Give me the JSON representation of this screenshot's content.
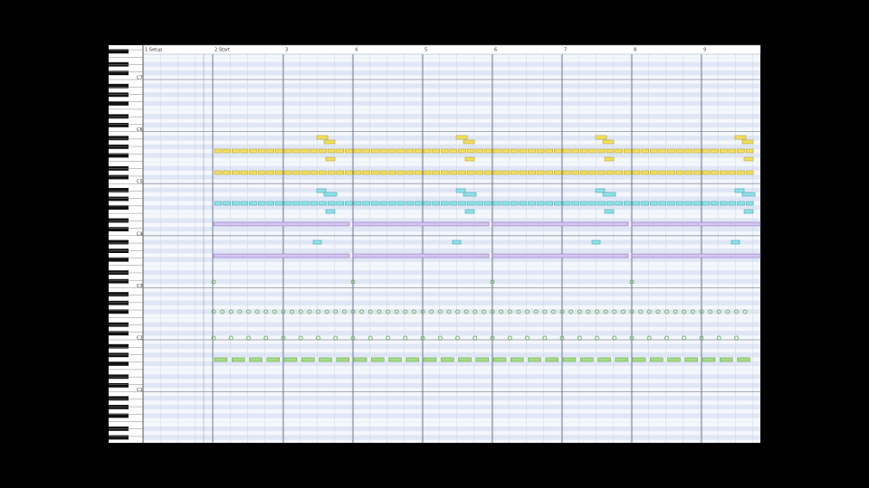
{
  "header": {
    "measures": [
      "1 Setup",
      "2 Start",
      "3",
      "4",
      "5",
      "6",
      "7",
      "8",
      "9"
    ]
  },
  "keyboard": {
    "octaves": [
      "C7",
      "C6",
      "C5",
      "C4",
      "C3",
      "C2",
      "C1"
    ]
  }
}
